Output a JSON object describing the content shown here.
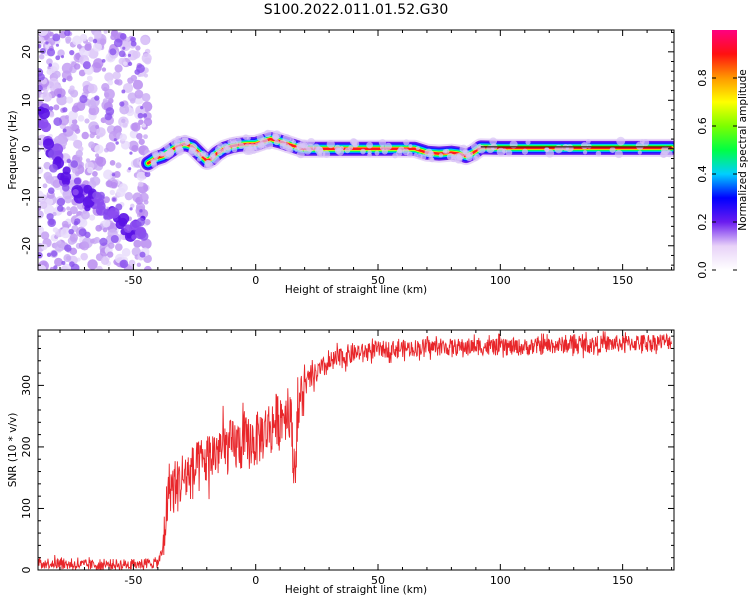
{
  "figure": {
    "title": "S100.2022.011.01.52.G30"
  },
  "chart_data": [
    {
      "type": "heatmap",
      "title": "S100.2022.011.01.52.G30",
      "xlabel": "Height of straight line (km)",
      "ylabel": "Frequency (Hz)",
      "xlim": [
        -89,
        171
      ],
      "ylim": [
        -25,
        24.5
      ],
      "x_ticks": [
        -50,
        0,
        50,
        100,
        150
      ],
      "y_ticks": [
        -20,
        -10,
        0,
        10,
        20
      ],
      "x_tick_labels": [
        "-50",
        "0",
        "50",
        "100",
        "150"
      ],
      "y_tick_labels": [
        "-20",
        "-10",
        "0",
        "10",
        "20"
      ],
      "colorbar": {
        "label": "Normalized spectral amplitude",
        "range": [
          0,
          1
        ],
        "ticks": [
          0.0,
          0.2,
          0.4,
          0.6,
          0.8
        ],
        "tick_labels": [
          "0.0",
          "0.2",
          "0.4",
          "0.6",
          "0.8"
        ],
        "colormap": [
          "#ffffff",
          "#e8d2f8",
          "#6a1cf0",
          "#0000ff",
          "#00cfff",
          "#00ff44",
          "#7dff00",
          "#ffff00",
          "#ff9900",
          "#ff1010",
          "#ff0080"
        ]
      },
      "noise_region": {
        "x_range": [
          -89,
          -44
        ],
        "freq_range": [
          -25,
          24.5
        ],
        "dense_band": [
          [
            -88,
            7
          ],
          [
            -84,
            2
          ],
          [
            -80,
            -3
          ],
          [
            -75,
            -7
          ],
          [
            -70,
            -10
          ],
          [
            -66,
            -11
          ],
          [
            -60,
            -14
          ],
          [
            -55,
            -16
          ],
          [
            -50,
            -17
          ],
          [
            -46,
            -16
          ]
        ]
      },
      "frequency_track": {
        "x": [
          -44,
          -41,
          -38,
          -35,
          -32,
          -29,
          -26,
          -23,
          -20,
          -18,
          -16,
          -13,
          -10,
          -7,
          -3,
          0,
          3,
          6,
          10,
          13,
          16,
          19,
          22,
          26,
          30,
          35,
          40,
          45,
          50,
          55,
          60,
          65,
          70,
          75,
          80,
          83,
          86,
          89,
          92,
          100,
          110,
          120,
          130,
          140,
          150,
          160,
          170
        ],
        "y": [
          -3,
          -2,
          -1.5,
          -0.5,
          0.5,
          1,
          0.5,
          -1,
          -2.5,
          -2,
          -1,
          0,
          0.5,
          0.8,
          1,
          1,
          1.5,
          2,
          1.5,
          1,
          0.5,
          0,
          0,
          0,
          0,
          0,
          0,
          0,
          0,
          0,
          0,
          0,
          -0.8,
          -1,
          -0.8,
          -1,
          -1.5,
          -0.8,
          0.3,
          0.2,
          0.2,
          0.2,
          0.2,
          0.2,
          0.2,
          0.2,
          0.2
        ]
      },
      "line_segment": {
        "x": [
          92,
          170
        ],
        "y": [
          0.4,
          0.4
        ]
      }
    },
    {
      "type": "line",
      "xlabel": "Height of straight line (km)",
      "ylabel": "SNR (10 * v/v)",
      "xlim": [
        -89,
        171
      ],
      "ylim": [
        0,
        390
      ],
      "x_ticks": [
        -50,
        0,
        50,
        100,
        150
      ],
      "y_ticks": [
        0,
        100,
        200,
        300
      ],
      "x_tick_labels": [
        "-50",
        "0",
        "50",
        "100",
        "150"
      ],
      "y_tick_labels": [
        "0",
        "100",
        "200",
        "300"
      ],
      "series": [
        {
          "color": "#e8262a",
          "x": [
            -89,
            -80,
            -70,
            -60,
            -50,
            -40,
            -38,
            -36,
            -35,
            -33,
            -30,
            -25,
            -20,
            -15,
            -10,
            -5,
            0,
            5,
            10,
            14,
            16,
            17,
            18,
            20,
            25,
            30,
            35,
            40,
            50,
            60,
            70,
            80,
            90,
            100,
            110,
            120,
            130,
            140,
            150,
            160,
            170
          ],
          "y": [
            12,
            10,
            8,
            9,
            9,
            12,
            30,
            120,
            140,
            130,
            150,
            160,
            180,
            195,
            200,
            205,
            210,
            230,
            250,
            260,
            160,
            240,
            270,
            300,
            320,
            335,
            345,
            352,
            358,
            360,
            362,
            362,
            363,
            362,
            362,
            365,
            366,
            367,
            368,
            370,
            372
          ]
        }
      ]
    }
  ]
}
